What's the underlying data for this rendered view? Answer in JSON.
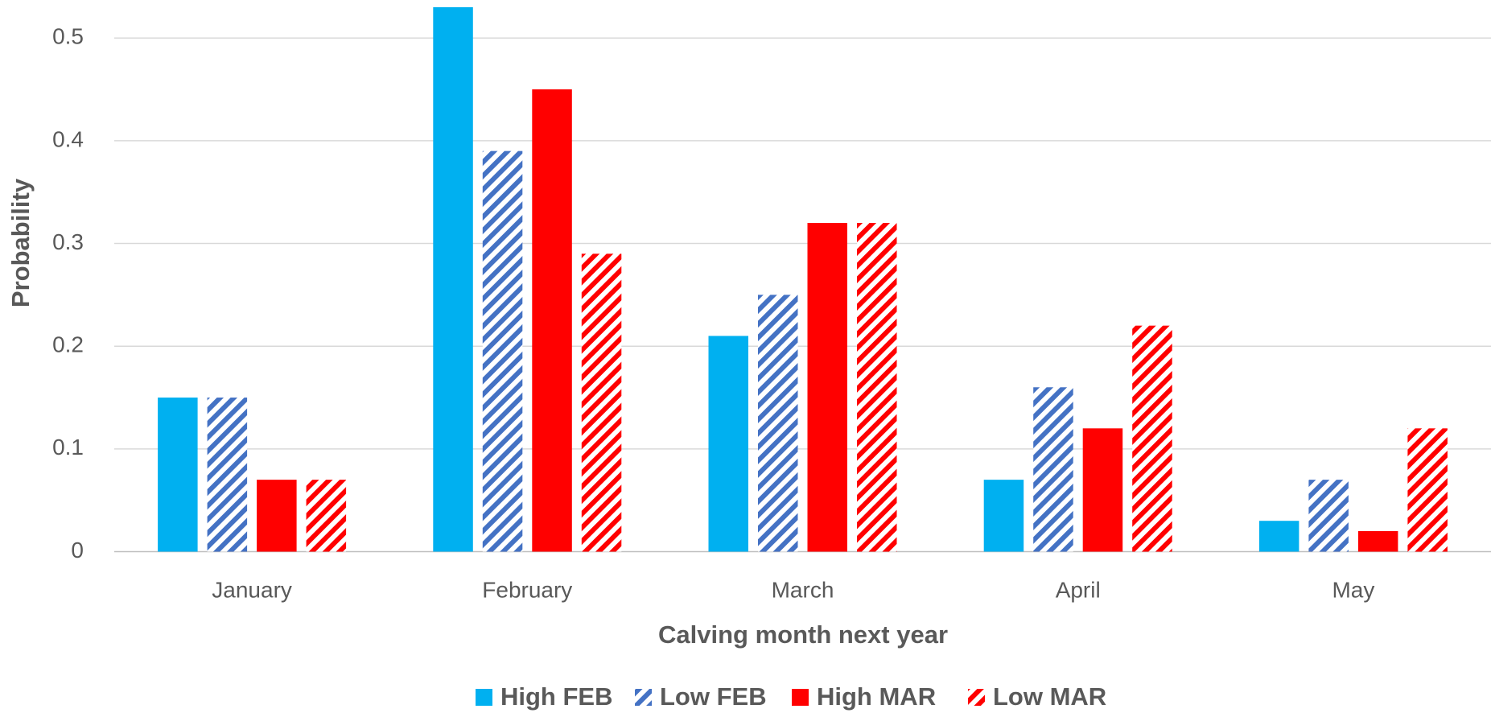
{
  "chart_data": {
    "type": "bar",
    "x_label": "Calving month next year",
    "y_label": "Probability",
    "categories": [
      "January",
      "February",
      "March",
      "April",
      "May"
    ],
    "series": [
      {
        "name": "High FEB",
        "color": "#00b0f0",
        "hatched": false,
        "values": [
          0.15,
          0.53,
          0.21,
          0.07,
          0.03
        ]
      },
      {
        "name": "Low FEB",
        "color": "#4472c4",
        "hatched": true,
        "values": [
          0.15,
          0.39,
          0.25,
          0.16,
          0.07
        ]
      },
      {
        "name": "High MAR",
        "color": "#ff0000",
        "hatched": false,
        "values": [
          0.07,
          0.45,
          0.32,
          0.12,
          0.02
        ]
      },
      {
        "name": "Low MAR",
        "color": "#ff0000",
        "hatched": true,
        "values": [
          0.07,
          0.29,
          0.32,
          0.22,
          0.12
        ]
      }
    ],
    "ylim": [
      0,
      0.537
    ],
    "yticks": [
      0,
      0.1,
      0.2,
      0.3,
      0.4,
      0.5
    ],
    "grid": true,
    "legend": "bottom"
  }
}
